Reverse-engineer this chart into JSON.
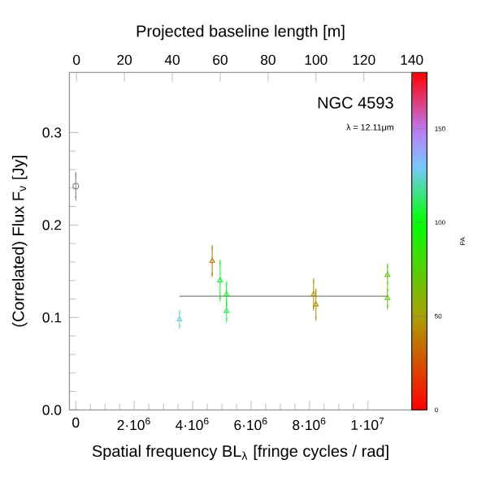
{
  "chart_data": {
    "type": "scatter",
    "title": "NGC 4593",
    "subtitle": "λ = 12.11μm",
    "xlabel": "Spatial frequency BL$_{λ}$ [fringe cycles / rad]",
    "ylabel": "(Correlated) Flux F$_{ν}$ [Jy]",
    "x2label": "Projected baseline length [m]",
    "clabel": "PA",
    "series": [
      {
        "type": "scatter",
        "marker": "circle",
        "color": "#808080",
        "x": [
          0
        ],
        "values": [
          0.242
        ],
        "errors": [
          0.013
        ]
      },
      {
        "marker": "triangle",
        "colors": [
          "#64d4d4",
          "#bb8000",
          "#14f72a",
          "#14f72a",
          "#28f055",
          "#b29000",
          "#b29000",
          "#55cf00",
          "#55cf00"
        ],
        "x": [
          3550000,
          4670000,
          4940000,
          5160000,
          5160000,
          8140000,
          8220000,
          10670000,
          10670000
        ],
        "values": [
          0.098,
          0.161,
          0.14,
          0.125,
          0.107,
          0.125,
          0.114,
          0.146,
          0.121
        ],
        "errors": [
          0.008,
          0.015,
          0.02,
          0.012,
          0.01,
          0.015,
          0.015,
          0.01,
          0.01
        ],
        "cvalues": [
          125,
          40,
          105,
          105,
          110,
          45,
          45,
          75,
          75
        ]
      },
      {
        "type": "line",
        "color": "#808080",
        "x": [
          3550000,
          10670000
        ],
        "values": [
          0.123,
          0.123
        ]
      }
    ],
    "xlim": [
      -220000,
      11500000
    ],
    "xticks": [
      0,
      {
        "value": 2000000,
        "label": "2·10$^{6}$"
      },
      {
        "value": 4000000,
        "label": "4·10$^{6}$"
      },
      {
        "value": 6000000,
        "label": "6·10$^{6}$"
      },
      {
        "value": 8000000,
        "label": "8·10$^{6}$"
      },
      {
        "value": 10000000,
        "label": "1·10$^{7}$"
      }
    ],
    "x2lim": [
      -3,
      140
    ],
    "x2ticks": [
      0,
      20,
      40,
      60,
      80,
      100,
      120,
      140
    ],
    "ylim": [
      0,
      0.365
    ],
    "yticks": [
      {
        "value": 0,
        "label": "0.0"
      },
      {
        "value": 0.1,
        "label": "0.1"
      },
      {
        "value": 0.2,
        "label": "0.2"
      },
      {
        "value": 0.3,
        "label": "0.3"
      }
    ],
    "clim": [
      0,
      180
    ],
    "cticks": [
      0,
      50,
      100,
      150
    ]
  }
}
